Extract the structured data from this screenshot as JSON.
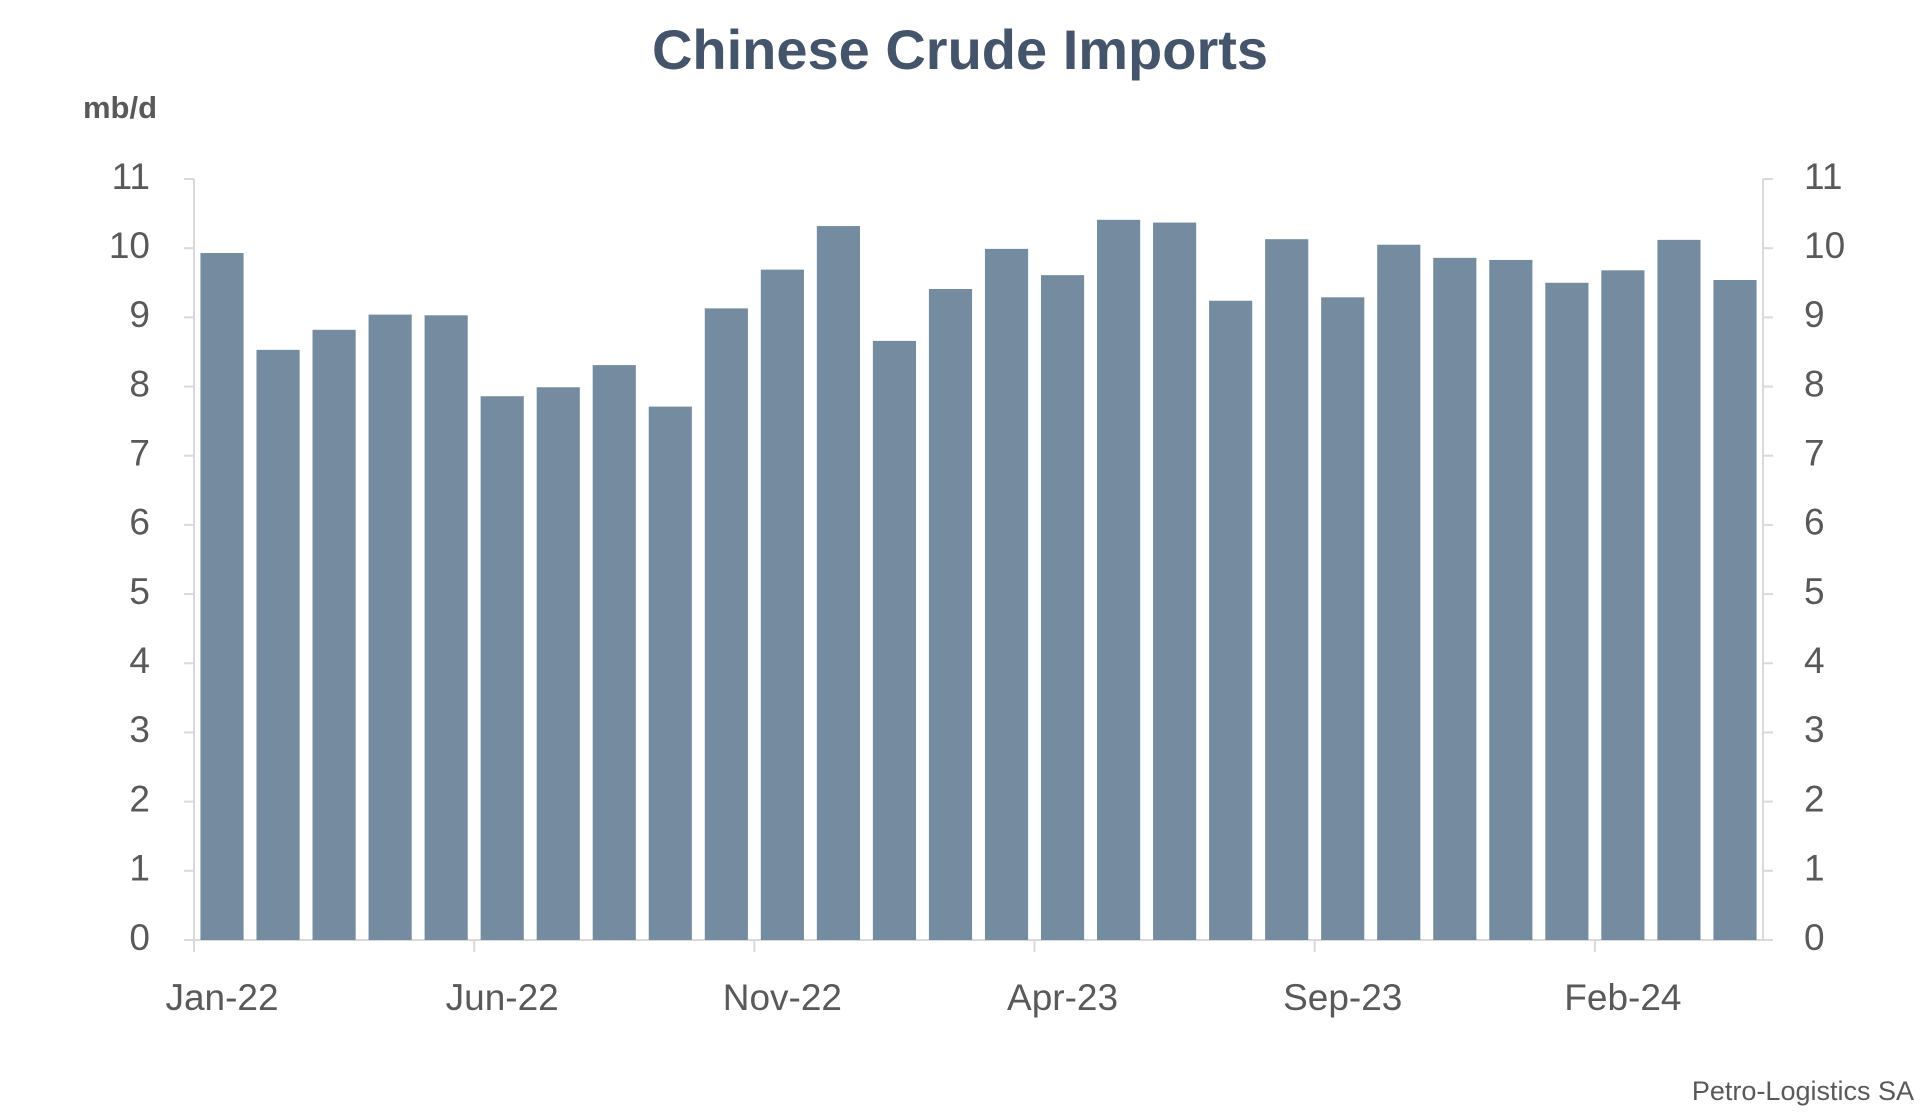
{
  "chart_data": {
    "type": "bar",
    "title": "Chinese Crude Imports",
    "y_label": "mb/d",
    "source": "Petro-Logistics SA",
    "categories": [
      "Jan-22",
      null,
      null,
      null,
      null,
      "Jun-22",
      null,
      null,
      null,
      null,
      "Nov-22",
      null,
      null,
      null,
      null,
      "Apr-23",
      null,
      null,
      null,
      null,
      "Sep-23",
      null,
      null,
      null,
      null,
      "Feb-24",
      null,
      null
    ],
    "values": [
      9.93,
      8.53,
      8.82,
      9.04,
      9.03,
      7.86,
      7.99,
      8.31,
      7.71,
      9.13,
      9.69,
      10.32,
      8.66,
      9.41,
      9.99,
      9.61,
      10.41,
      10.37,
      9.24,
      10.13,
      9.29,
      10.05,
      9.86,
      9.83,
      9.5,
      9.68,
      10.12,
      9.54
    ],
    "color": "#758ca0",
    "ylim": [
      0,
      11
    ],
    "yticks": [
      0,
      1,
      2,
      3,
      4,
      5,
      6,
      7,
      8,
      9,
      10,
      11
    ],
    "y2lim": [
      0,
      11
    ],
    "y2ticks": [
      0,
      1,
      2,
      3,
      4,
      5,
      6,
      7,
      8,
      9,
      10,
      11
    ],
    "grid": false
  }
}
